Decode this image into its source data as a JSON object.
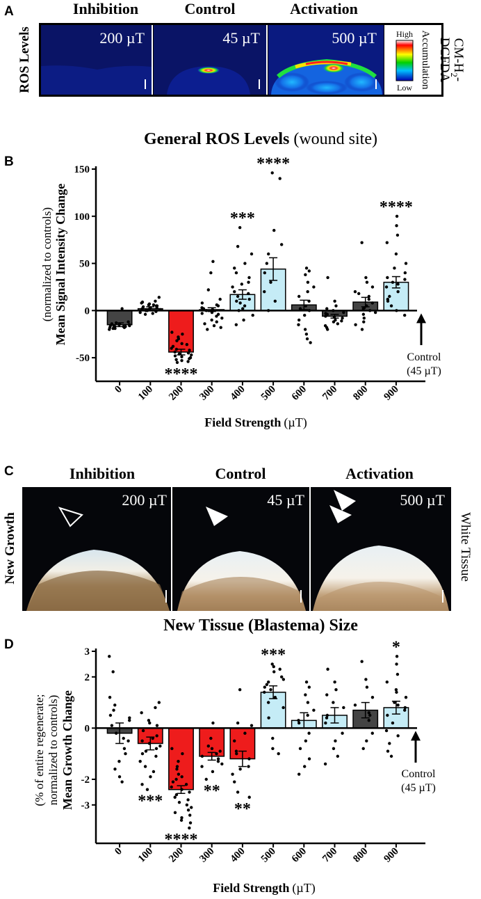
{
  "panel_a": {
    "letter": "A",
    "side_label": "ROS Levels",
    "right_label_line1": "CM-H",
    "right_label_sub": "2",
    "right_label_suffix": "-",
    "right_label_line2": "DCFDA",
    "columns": [
      {
        "heading": "Inhibition",
        "field": "200 µT"
      },
      {
        "heading": "Control",
        "field": "45 µT"
      },
      {
        "heading": "Activation",
        "field": "500 µT"
      }
    ],
    "colorbar": {
      "high": "High",
      "low": "Low",
      "title": "Accumulation"
    }
  },
  "panel_c": {
    "letter": "C",
    "side_label": "New Growth",
    "right_label": "White Tissue",
    "columns": [
      {
        "heading": "Inhibition",
        "field": "200 µT"
      },
      {
        "heading": "Control",
        "field": "45 µT"
      },
      {
        "heading": "Activation",
        "field": "500 µT"
      }
    ]
  },
  "colors": {
    "inhibit": "#ee1c1c",
    "activate": "#c5ecf6",
    "neutral": "#444444",
    "frame": "#000000"
  },
  "chart_data": [
    {
      "panel": "B",
      "type": "bar",
      "title": "General ROS Levels",
      "title_suffix": "(wound site)",
      "xlabel": "Field Strength",
      "xlabel_unit": "(µT)",
      "ylabel": "Mean Signal Intensity Change",
      "ylabel_sub": "(normalized to controls)",
      "ylim": [
        -75,
        150
      ],
      "yticks": [
        -50,
        0,
        50,
        100,
        150
      ],
      "categories": [
        "0",
        "100",
        "200",
        "300",
        "400",
        "500",
        "600",
        "700",
        "800",
        "900"
      ],
      "values": [
        -15,
        2,
        -44,
        1,
        17,
        44,
        6,
        -6,
        9,
        30
      ],
      "sem": [
        2,
        2,
        3,
        2,
        5,
        12,
        5,
        2,
        5,
        6
      ],
      "bar_color": [
        "neutral",
        "neutral",
        "inhibit",
        "neutral",
        "activate",
        "activate",
        "neutral",
        "neutral",
        "neutral",
        "activate"
      ],
      "significance": [
        "",
        "",
        "****",
        "",
        "***",
        "****",
        "",
        "",
        "",
        "****"
      ],
      "sig_position": [
        "",
        "",
        "below",
        "",
        "above",
        "above",
        "",
        "",
        "",
        "above"
      ],
      "points": [
        [
          -20,
          -19,
          -18,
          -17,
          -16,
          -16,
          -15,
          -14,
          -13,
          -12,
          -18,
          -17,
          -15,
          -19,
          -14,
          2,
          -16,
          -17
        ],
        [
          14,
          10,
          8,
          6,
          5,
          4,
          3,
          2,
          1,
          0,
          -1,
          -2,
          -4,
          6,
          3,
          1,
          0,
          -3,
          7,
          2,
          9,
          5
        ],
        [
          -23,
          -25,
          -28,
          -32,
          -35,
          -38,
          -40,
          -42,
          -44,
          -46,
          -47,
          -48,
          -49,
          -50,
          -51,
          -52,
          -53,
          -54,
          -55,
          -45,
          -41,
          -36,
          -30
        ],
        [
          52,
          40,
          22,
          12,
          8,
          5,
          3,
          1,
          0,
          -2,
          -4,
          -6,
          -8,
          -10,
          -12,
          -14,
          -16,
          -18,
          -20,
          6,
          -3,
          2
        ],
        [
          88,
          68,
          60,
          50,
          45,
          40,
          35,
          30,
          25,
          20,
          15,
          12,
          10,
          8,
          5,
          2,
          0,
          -5,
          -10,
          -15,
          18,
          28
        ],
        [
          146,
          140,
          85,
          70,
          60,
          50,
          40,
          30,
          20,
          10,
          0
        ],
        [
          45,
          42,
          38,
          30,
          25,
          20,
          15,
          10,
          5,
          2,
          0,
          -5,
          -10,
          -15,
          -20,
          -25,
          -30,
          -34
        ],
        [
          35,
          10,
          5,
          2,
          0,
          -2,
          -4,
          -6,
          -8,
          -10,
          -12,
          -14,
          -16,
          -18,
          -20,
          -3,
          -7,
          -11
        ],
        [
          72,
          35,
          30,
          25,
          20,
          15,
          12,
          8,
          5,
          2,
          0,
          -2,
          -4,
          -8,
          -12,
          -15,
          -20,
          18,
          3
        ],
        [
          100,
          90,
          80,
          72,
          60,
          50,
          45,
          40,
          35,
          30,
          25,
          20,
          15,
          10,
          5,
          0,
          -5,
          28,
          33,
          12
        ]
      ],
      "control_label_line1": "Control",
      "control_label_line2": "(45 µT)"
    },
    {
      "panel": "D",
      "type": "bar",
      "title": "New Tissue (Blastema) Size",
      "xlabel": "Field Strength",
      "xlabel_unit": "(µT)",
      "ylabel": "Mean Growth Change",
      "ylabel_sub1": "(% of entire regenerate;",
      "ylabel_sub2": "normalized to controls)",
      "ylim": [
        -4.5,
        3
      ],
      "yticks": [
        -3,
        -2,
        0,
        2,
        3
      ],
      "categories": [
        "0",
        "100",
        "200",
        "300",
        "400",
        "500",
        "600",
        "700",
        "800",
        "900"
      ],
      "values": [
        -0.2,
        -0.6,
        -2.4,
        -1.1,
        -1.2,
        1.4,
        0.3,
        0.5,
        0.7,
        0.8
      ],
      "sem": [
        0.4,
        0.25,
        0.15,
        0.15,
        0.3,
        0.25,
        0.3,
        0.3,
        0.3,
        0.25
      ],
      "bar_color": [
        "neutral",
        "inhibit",
        "inhibit",
        "inhibit",
        "inhibit",
        "activate",
        "activate",
        "activate",
        "neutral",
        "activate"
      ],
      "significance": [
        "",
        "***",
        "****",
        "**",
        "**",
        "***",
        "",
        "",
        "",
        "*"
      ],
      "sig_position": [
        "",
        "below",
        "below",
        "below",
        "below",
        "above",
        "",
        "",
        "",
        "above"
      ],
      "points": [
        [
          2.8,
          2.2,
          1.2,
          0.9,
          0.7,
          0.5,
          0.3,
          0.1,
          -0.2,
          -0.5,
          -0.8,
          -1.0,
          -1.3,
          -1.6,
          -1.9,
          -2.1,
          0.4,
          -0.4
        ],
        [
          1.0,
          0.8,
          0.6,
          0.3,
          0.1,
          -0.1,
          -0.3,
          -0.5,
          -0.7,
          -0.9,
          -1.1,
          -1.3,
          -1.5,
          -1.7,
          -1.9,
          -2.2,
          -2.4,
          -0.4,
          -0.6,
          0.2,
          -1.0,
          -0.8
        ],
        [
          -0.8,
          -1.0,
          -1.3,
          -1.6,
          -1.9,
          -2.1,
          -2.3,
          -2.5,
          -2.7,
          -2.9,
          -3.1,
          -3.3,
          -3.5,
          -3.7,
          -3.9,
          -2.0,
          -2.4,
          -2.8,
          -1.5,
          -3.2,
          -2.6,
          -3.0,
          -1.8,
          -2.2,
          -3.4,
          -3.6
        ],
        [
          0.2,
          -0.4,
          -0.7,
          -0.9,
          -1.1,
          -1.3,
          -1.5,
          -1.7,
          -2.0,
          -0.8,
          -1.2,
          -1.0,
          -1.4
        ],
        [
          1.5,
          0.2,
          0.1,
          -0.2,
          -0.5,
          -0.9,
          -1.2,
          -1.5,
          -1.8,
          -2.1,
          -2.5,
          -2.7,
          -1.0,
          -1.6
        ],
        [
          2.5,
          2.3,
          2.2,
          2.0,
          1.8,
          1.7,
          1.6,
          1.5,
          1.4,
          1.2,
          1.0,
          0.8,
          0.4,
          -0.4,
          -0.8,
          -1.0,
          2.4,
          1.9
        ],
        [
          1.8,
          1.6,
          1.3,
          1.0,
          0.7,
          0.5,
          0.2,
          -0.2,
          -0.5,
          -0.8,
          -1.2,
          -1.5,
          -1.8,
          0.3
        ],
        [
          2.3,
          1.8,
          1.5,
          1.3,
          1.0,
          0.8,
          0.5,
          0.2,
          -0.2,
          -0.5,
          -0.8,
          -1.1,
          -1.4,
          0.4
        ],
        [
          2.6,
          1.9,
          1.6,
          1.2,
          0.9,
          0.6,
          0.3,
          -0.2,
          -0.5,
          -0.8,
          0.5
        ],
        [
          2.8,
          2.5,
          2.1,
          1.8,
          1.5,
          1.2,
          1.0,
          0.8,
          0.5,
          0.2,
          -0.1,
          -0.3,
          -0.6,
          -0.9,
          -1.1,
          1.4,
          0.7,
          0.9
        ]
      ],
      "control_label_line1": "Control",
      "control_label_line2": "(45 µT)"
    }
  ]
}
